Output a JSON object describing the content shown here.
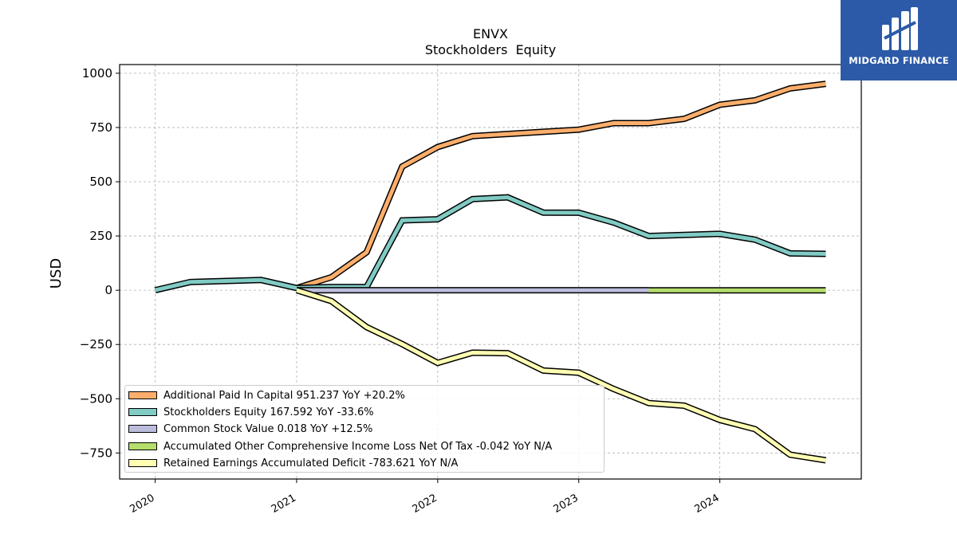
{
  "brand": {
    "name": "MIDGARD FINANCE",
    "color": "#2c5aa8"
  },
  "chart_data": {
    "type": "line",
    "title": "ENVX",
    "subtitle": "Stockholders  Equity",
    "xlabel": "",
    "ylabel": "USD",
    "xlim": [
      "2019-10-01",
      "2025-01-01"
    ],
    "ylim": [
      -870,
      1040
    ],
    "x_ticks": [
      "2020",
      "2021",
      "2022",
      "2023",
      "2024"
    ],
    "y_ticks": [
      -750,
      -500,
      -250,
      0,
      250,
      500,
      750,
      1000
    ],
    "grid": true,
    "legend_position": "lower-left",
    "series": [
      {
        "name": "Additional Paid In Capital  951.237 YoY +20.2%",
        "color": "#fdae6b",
        "x": [
          "2021-01-01",
          "2021-04-01",
          "2021-07-01",
          "2021-10-01",
          "2022-01-01",
          "2022-04-01",
          "2022-07-01",
          "2022-10-01",
          "2023-01-01",
          "2023-04-01",
          "2023-07-01",
          "2023-10-01",
          "2024-01-01",
          "2024-04-01",
          "2024-07-01",
          "2024-10-01"
        ],
        "values": [
          10,
          60,
          175,
          570,
          660,
          710,
          720,
          730,
          740,
          770,
          770,
          790,
          855,
          875,
          930,
          951.237
        ]
      },
      {
        "name": "Stockholders Equity  167.592 YoY -33.6%",
        "color": "#80cbc4",
        "x": [
          "2020-01-01",
          "2020-04-01",
          "2020-10-01",
          "2021-01-01",
          "2021-04-01",
          "2021-07-01",
          "2021-10-01",
          "2022-01-01",
          "2022-04-01",
          "2022-07-01",
          "2022-10-01",
          "2023-01-01",
          "2023-04-01",
          "2023-07-01",
          "2023-10-01",
          "2024-01-01",
          "2024-04-01",
          "2024-07-01",
          "2024-10-01"
        ],
        "values": [
          0,
          38,
          47,
          10,
          15,
          15,
          322,
          327,
          420,
          428,
          358,
          357,
          312,
          250,
          255,
          260,
          233,
          170,
          167.592
        ]
      },
      {
        "name": "Common Stock Value  0.018 YoY +12.5%",
        "color": "#bcbddc",
        "x": [
          "2021-01-01",
          "2023-07-01"
        ],
        "values": [
          0.018,
          0.018
        ]
      },
      {
        "name": "Accumulated Other Comprehensive Income Loss Net Of Tax  -0.042 YoY N/A",
        "color": "#b5de6a",
        "x": [
          "2023-07-01",
          "2024-10-01"
        ],
        "values": [
          -0.042,
          -0.042
        ]
      },
      {
        "name": "Retained Earnings Accumulated Deficit  -783.621 YoY N/A",
        "color": "#ffffb3",
        "x": [
          "2021-01-01",
          "2021-04-01",
          "2021-07-01",
          "2021-10-01",
          "2022-01-01",
          "2022-04-01",
          "2022-07-01",
          "2022-10-01",
          "2023-01-01",
          "2023-04-01",
          "2023-07-01",
          "2023-10-01",
          "2024-01-01",
          "2024-04-01",
          "2024-07-01",
          "2024-10-01"
        ],
        "values": [
          0,
          -50,
          -170,
          -248,
          -335,
          -288,
          -290,
          -370,
          -380,
          -455,
          -520,
          -532,
          -598,
          -640,
          -758,
          -783.621
        ]
      }
    ]
  }
}
